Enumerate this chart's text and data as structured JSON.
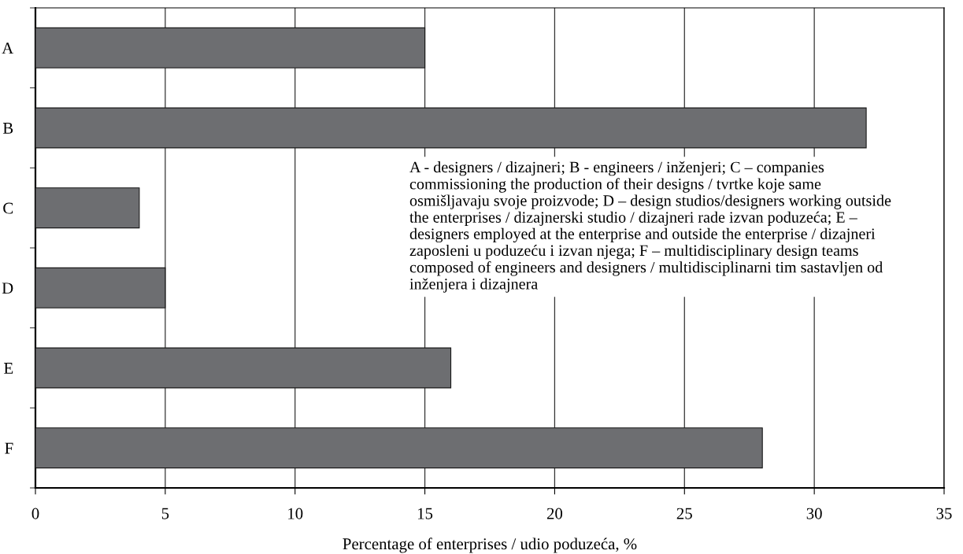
{
  "chart_data": {
    "type": "bar",
    "orientation": "horizontal",
    "categories": [
      "A",
      "B",
      "C",
      "D",
      "E",
      "F"
    ],
    "values": [
      15,
      32,
      4,
      5,
      16,
      28
    ],
    "color": "#6d6e71",
    "xlim": [
      0,
      35
    ],
    "xticks": [
      0,
      5,
      10,
      15,
      20,
      25,
      30,
      35
    ],
    "grid": "x",
    "xlabel": "Percentage of enterprises / udio poduzeća, %",
    "annotations": [
      "A - designers / dizajneri; B - engineers / inženjeri; C – companies commissioning the production of their designs / tvrtke koje same osmišljavaju svoje proizvode; D – design studios/designers working outside the enterprises / dizajnerski studio / dizajneri rade izvan poduzeća; E – designers employed at the enterprise and outside the enterprise / dizajneri zaposleni u poduzeću i izvan njega; F – multidisciplinary design teams composed of engineers and designers / multidisciplinarni tim sastavljen od inženjera i dizajnera"
    ]
  }
}
